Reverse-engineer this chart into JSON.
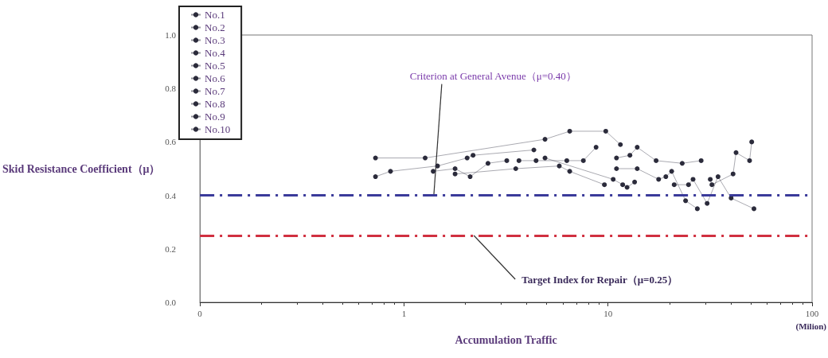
{
  "chart_data": {
    "type": "line",
    "xlabel": "Accumulation Traffic",
    "ylabel": "Skid Resistance Coefficient（μ）",
    "annotations": [
      "(Milion)"
    ],
    "log": "x",
    "xlim": [
      0.1,
      100
    ],
    "xticks": [
      {
        "value": 0.1,
        "label": "0"
      },
      1,
      10,
      100
    ],
    "ylim": [
      0,
      1
    ],
    "yticks": [
      {
        "value": 0,
        "label": "0.0"
      },
      {
        "value": 0.2,
        "label": "0.2"
      },
      {
        "value": 0.4,
        "label": "0.4"
      },
      {
        "value": 0.6,
        "label": "0.6"
      },
      {
        "value": 0.8,
        "label": "0.8"
      },
      {
        "value": 1,
        "label": "1.0"
      }
    ],
    "grid": false,
    "legend": "top left",
    "marker": "circle",
    "line_style": "solid",
    "ref_lines": [
      {
        "axis": "y",
        "value": 0.4,
        "label": "Criterion at General Avenue（μ=0.40）",
        "color": "#3a3a9a",
        "line_style": "dashed"
      },
      {
        "axis": "y",
        "value": 0.25,
        "label": "Target Index for Repair（μ=0.25）",
        "color": "#d03040",
        "line_style": "dashed"
      }
    ],
    "series": [
      {
        "name": "No.1",
        "color": "#2b2b3b",
        "x": [
          0.725,
          1.27,
          4.91,
          6.49,
          9.75,
          11.5
        ],
        "values": [
          0.54,
          0.54,
          0.61,
          0.64,
          0.64,
          0.59
        ]
      },
      {
        "name": "No.2",
        "color": "#2b2b3b",
        "x": [
          0.725,
          0.859,
          1.46,
          2.04,
          2.18,
          4.33
        ],
        "values": [
          0.47,
          0.49,
          0.51,
          0.54,
          0.55,
          0.57
        ]
      },
      {
        "name": "No.3",
        "color": "#2b2b3b",
        "x": [
          1.39,
          1.78,
          2.11,
          2.58,
          3.19
        ],
        "values": [
          0.49,
          0.5,
          0.47,
          0.52,
          0.53
        ]
      },
      {
        "name": "No.4",
        "color": "#2b2b3b",
        "x": [
          1.78,
          3.53,
          5.77,
          6.49,
          9.6
        ],
        "values": [
          0.48,
          0.5,
          0.51,
          0.49,
          0.44
        ]
      },
      {
        "name": "No.5",
        "color": "#2b2b3b",
        "x": [
          3.66,
          4.44,
          6.28,
          7.57,
          8.74
        ],
        "values": [
          0.53,
          0.53,
          0.53,
          0.53,
          0.58
        ]
      },
      {
        "name": "No.6",
        "color": "#2b2b3b",
        "x": [
          4.91,
          10.6,
          11.8,
          12.4,
          13.5
        ],
        "values": [
          0.54,
          0.46,
          0.44,
          0.43,
          0.45
        ]
      },
      {
        "name": "No.7",
        "color": "#2b2b3b",
        "x": [
          11.0,
          12.8,
          13.9,
          17.2,
          23.1,
          28.6
        ],
        "values": [
          0.54,
          0.55,
          0.58,
          0.53,
          0.52,
          0.53
        ]
      },
      {
        "name": "No.8",
        "color": "#2b2b3b",
        "x": [
          11.0,
          13.9,
          17.7,
          19.2,
          20.5,
          24.0,
          27.4
        ],
        "values": [
          0.5,
          0.5,
          0.46,
          0.47,
          0.49,
          0.38,
          0.35
        ]
      },
      {
        "name": "No.9",
        "color": "#2b2b3b",
        "x": [
          21.1,
          24.8,
          26.1,
          30.6,
          34.6,
          40.1,
          51.9
        ],
        "values": [
          0.44,
          0.44,
          0.46,
          0.37,
          0.47,
          0.39,
          0.35
        ]
      },
      {
        "name": "No.10",
        "color": "#2b2b3b",
        "x": [
          31.7,
          32.3,
          41.0,
          42.4,
          49.4,
          50.6
        ],
        "values": [
          0.46,
          0.44,
          0.48,
          0.56,
          0.53,
          0.6
        ]
      }
    ]
  }
}
